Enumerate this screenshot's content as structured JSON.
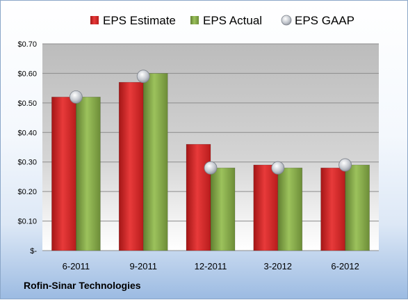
{
  "chart_data": {
    "type": "bar",
    "categories": [
      "6-2011",
      "9-2011",
      "12-2011",
      "3-2012",
      "6-2012"
    ],
    "series": [
      {
        "name": "EPS Estimate",
        "type": "bar",
        "color": "#cc1f1f",
        "values": [
          0.52,
          0.57,
          0.36,
          0.29,
          0.28
        ]
      },
      {
        "name": "EPS Actual",
        "type": "bar",
        "color": "#7ea343",
        "values": [
          0.52,
          0.6,
          0.28,
          0.28,
          0.29
        ]
      },
      {
        "name": "EPS GAAP",
        "type": "marker",
        "color": "#b8bcc4",
        "values": [
          0.52,
          0.59,
          0.28,
          0.28,
          0.29
        ]
      }
    ],
    "yticks": [
      "$-",
      "$0.10",
      "$0.20",
      "$0.30",
      "$0.40",
      "$0.50",
      "$0.60",
      "$0.70"
    ],
    "ylim": [
      0,
      0.7
    ],
    "grid": true,
    "legend_position": "top",
    "title": "",
    "xlabel": "",
    "ylabel": ""
  },
  "company": "Rofin-Sinar Technologies"
}
